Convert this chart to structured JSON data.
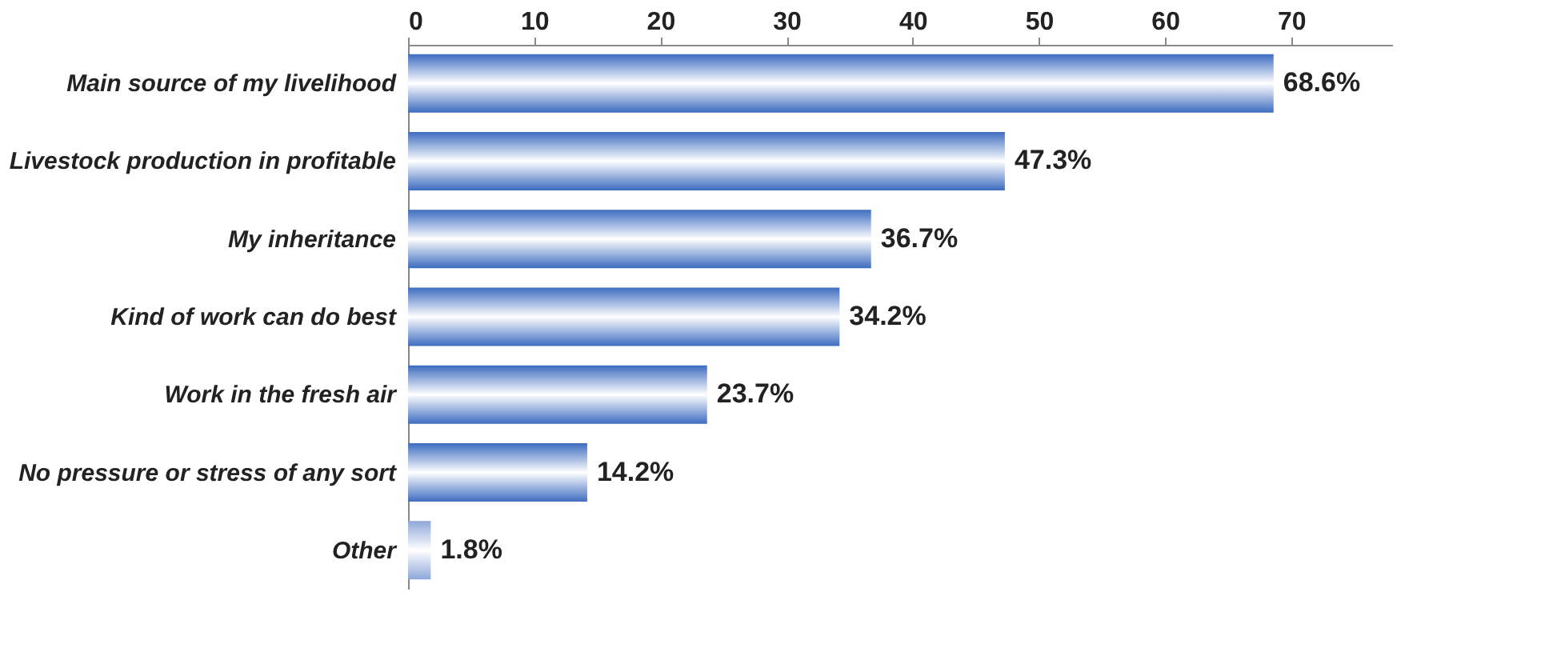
{
  "chart_data": {
    "type": "bar",
    "orientation": "horizontal",
    "categories": [
      "Main source of my livelihood",
      "Livestock production in profitable",
      "My inheritance",
      "Kind of work can do best",
      "Work in the fresh air",
      "No pressure or stress of any sort",
      "Other"
    ],
    "values": [
      68.6,
      47.3,
      36.7,
      34.2,
      23.7,
      14.2,
      1.8
    ],
    "value_labels": [
      "68.6%",
      "47.3%",
      "36.7%",
      "34.2%",
      "23.7%",
      "14.2%",
      "1.8%"
    ],
    "colors": [
      "#3d6cc0",
      "#3d6cc0",
      "#3d6cc0",
      "#3d6cc0",
      "#3d6cc0",
      "#3d6cc0",
      "#8ea7da"
    ],
    "xlim": [
      0,
      78
    ],
    "xticks": [
      0,
      10,
      20,
      30,
      40,
      50,
      60,
      70
    ],
    "grid": false
  }
}
